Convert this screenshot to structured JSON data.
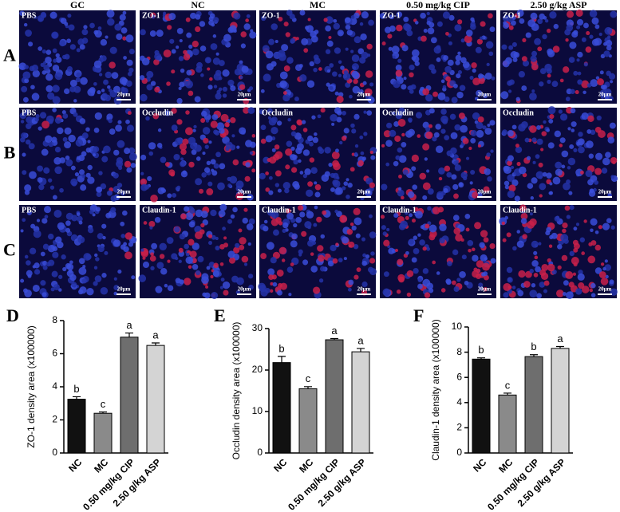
{
  "figure": {
    "columns": [
      "GC",
      "NC",
      "MC",
      "0.50 mg/kg CIP",
      "2.50 g/kg ASP"
    ],
    "rows": [
      {
        "label": "A",
        "images": [
          "PBS",
          "ZO-1",
          "ZO-1",
          "ZO-1",
          "ZO-1"
        ]
      },
      {
        "label": "B",
        "images": [
          "PBS",
          "Occludin",
          "Occludin",
          "Occludin",
          "Occludin"
        ]
      },
      {
        "label": "C",
        "images": [
          "PBS",
          "Claudin-1",
          "Claudin-1",
          "Claudin-1",
          "Claudin-1"
        ]
      }
    ],
    "scale_bar": "20μm"
  },
  "chart_data": [
    {
      "type": "bar",
      "panel": "D",
      "ylabel": "ZO-1 density area (x100000)",
      "categories": [
        "NC",
        "MC",
        "0.50 mg/kg CIP",
        "2.50 g/kg ASP"
      ],
      "values": [
        3.25,
        2.4,
        7.0,
        6.5
      ],
      "errors": [
        0.15,
        0.08,
        0.25,
        0.15
      ],
      "annotations": [
        "b",
        "c",
        "a",
        "a"
      ],
      "colors": [
        "#111111",
        "#8a8a8a",
        "#6e6e6e",
        "#d4d4d4"
      ],
      "ylim": [
        0,
        8
      ],
      "yticks": [
        0,
        2,
        4,
        6,
        8
      ]
    },
    {
      "type": "bar",
      "panel": "E",
      "ylabel": "Occludin density area (x100000)",
      "categories": [
        "NC",
        "MC",
        "0.50 mg/kg CIP",
        "2.50 g/kg ASP"
      ],
      "values": [
        21.8,
        15.5,
        27.3,
        24.4
      ],
      "errors": [
        1.5,
        0.5,
        0.3,
        0.8
      ],
      "annotations": [
        "b",
        "c",
        "a",
        "a"
      ],
      "colors": [
        "#111111",
        "#8a8a8a",
        "#6e6e6e",
        "#d4d4d4"
      ],
      "ylim": [
        0,
        30
      ],
      "yticks": [
        0,
        10,
        20,
        30
      ]
    },
    {
      "type": "bar",
      "panel": "F",
      "ylabel": "Claudin-1 density area (x100000)",
      "categories": [
        "NC",
        "MC",
        "0.50 mg/kg CIP",
        "2.50 g/kg ASP"
      ],
      "values": [
        7.45,
        4.6,
        7.65,
        8.3
      ],
      "errors": [
        0.1,
        0.15,
        0.15,
        0.15
      ],
      "annotations": [
        "b",
        "c",
        "b",
        "a"
      ],
      "colors": [
        "#111111",
        "#8a8a8a",
        "#6e6e6e",
        "#d4d4d4"
      ],
      "ylim": [
        0,
        10
      ],
      "yticks": [
        0,
        2,
        4,
        6,
        8,
        10
      ]
    }
  ]
}
